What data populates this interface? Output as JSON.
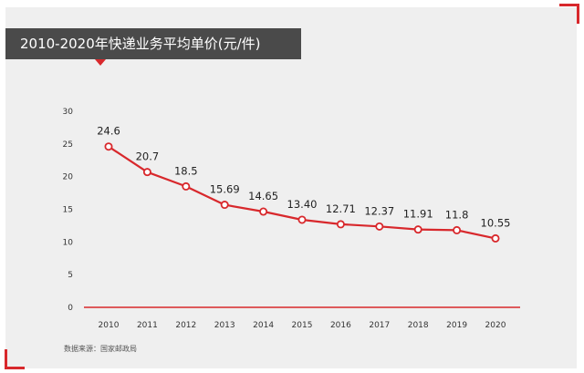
{
  "chart_title": "2010-2020年快递业务平均单价(元/件)",
  "source_note": "数据来源：国家邮政局",
  "colors": {
    "accent": "#d8282c",
    "line": "#d8282c",
    "title_bg": "#4a4a4a",
    "panel_bg": "#efefef"
  },
  "chart_data": {
    "type": "line",
    "title": "2010-2020年快递业务平均单价(元/件)",
    "xlabel": "",
    "ylabel": "",
    "categories": [
      "2010",
      "2011",
      "2012",
      "2013",
      "2014",
      "2015",
      "2016",
      "2017",
      "2018",
      "2019",
      "2020"
    ],
    "series": [
      {
        "values": [
          24.6,
          20.7,
          18.5,
          15.69,
          14.65,
          13.4,
          12.71,
          12.37,
          11.91,
          11.8,
          10.55
        ],
        "labels": [
          "24.6",
          "20.7",
          "18.5",
          "15.69",
          "14.65",
          "13.40",
          "12.71",
          "12.37",
          "11.91",
          "11.8",
          "10.55"
        ]
      }
    ],
    "ylim": [
      0,
      30
    ],
    "yticks": [
      "0",
      "5",
      "10",
      "15",
      "20",
      "25",
      "30"
    ],
    "grid": false,
    "legend": "none"
  }
}
